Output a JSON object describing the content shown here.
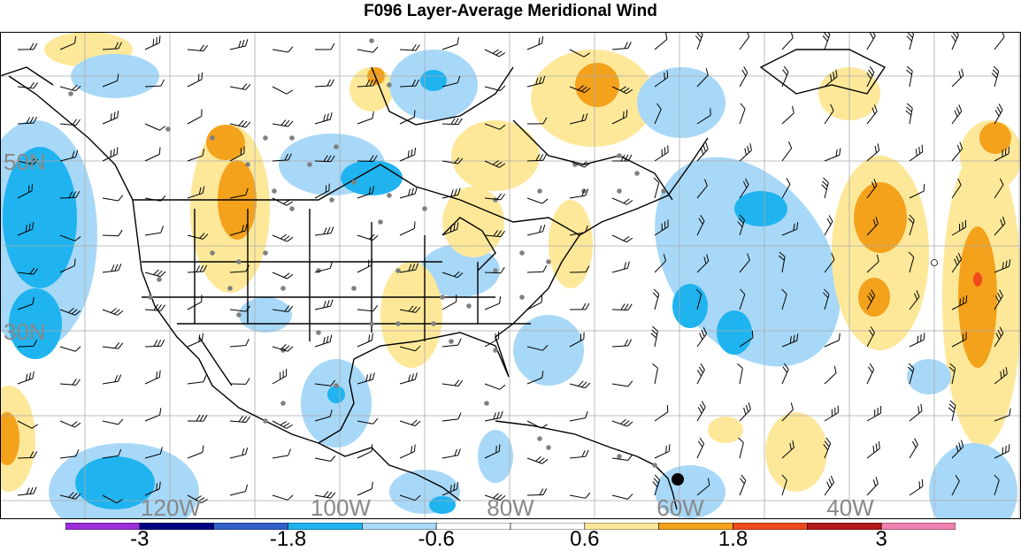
{
  "title": "F096 Layer-Average Meridional Wind",
  "map": {
    "lon_labels": [
      "120W",
      "100W",
      "80W",
      "60W",
      "40W"
    ],
    "lat_labels": [
      "50N",
      "30N"
    ],
    "grid_color": "#aaaaaa",
    "outline_color": "#000000"
  },
  "colorbar": {
    "colors": [
      "#9b30d9",
      "#000080",
      "#3060c8",
      "#1fb4f0",
      "#a8d8f8",
      "#ffffff",
      "#ffffff",
      "#fde89a",
      "#f4a11b",
      "#f04a1a",
      "#b31a1a",
      "#f080b0"
    ],
    "tick_labels": [
      "-3",
      "-1.8",
      "-0.6",
      "0.6",
      "1.8",
      "3"
    ]
  },
  "shading_colors": {
    "light_blue": "#a8d8f8",
    "blue": "#1fb4f0",
    "light_yellow": "#fde89a",
    "orange": "#f4a11b",
    "red": "#f04a1a"
  },
  "storm_marker_icon": "filled-circle"
}
